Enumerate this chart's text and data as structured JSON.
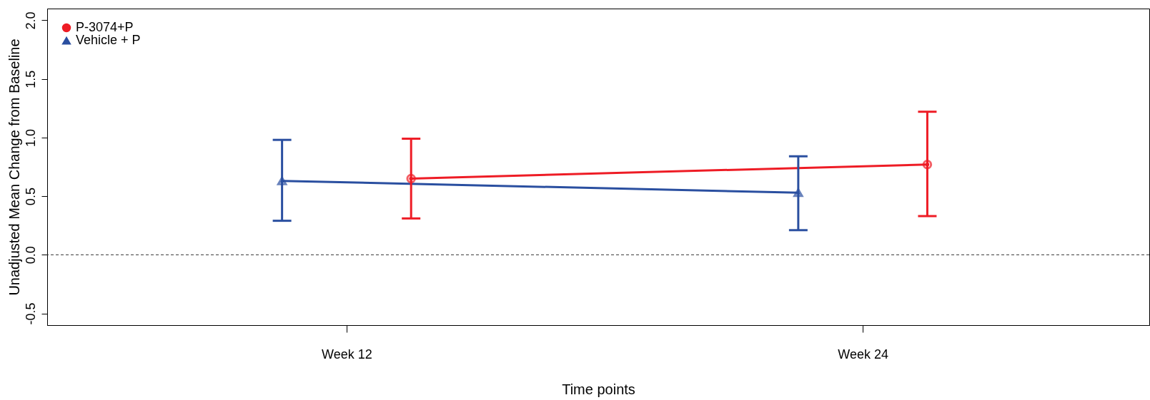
{
  "chart_data": {
    "type": "line",
    "xlabel": "Time points",
    "ylabel": "Unadjusted Mean Change from Baseline",
    "categories": [
      "Week 12",
      "Week 24"
    ],
    "ylim": [
      -0.6,
      2.1
    ],
    "yticks": [
      {
        "value": -0.5,
        "label": "-0.5"
      },
      {
        "value": 0,
        "label": "0.0"
      },
      {
        "value": 0.5,
        "label": "0.5"
      },
      {
        "value": 1,
        "label": "1.0"
      },
      {
        "value": 1.5,
        "label": "1.5"
      },
      {
        "value": 2,
        "label": "2.0"
      }
    ],
    "series": [
      {
        "name": "P-3074+P",
        "color": "#ee1c25",
        "marker": "circle",
        "values": [
          0.65,
          0.77
        ],
        "errors": [
          [
            0.31,
            0.99
          ],
          [
            0.33,
            1.22
          ]
        ]
      },
      {
        "name": "Vehicle + P",
        "color": "#2a4fa0",
        "marker": "triangle",
        "values": [
          0.63,
          0.53
        ],
        "errors": [
          [
            0.29,
            0.98
          ],
          [
            0.21,
            0.84
          ]
        ]
      }
    ],
    "ref_lines": [
      {
        "axis": "y",
        "value": 0,
        "line_style": "dashed",
        "color": "#333333"
      }
    ],
    "legend": "top left",
    "grid": false,
    "line_style": "solid"
  }
}
